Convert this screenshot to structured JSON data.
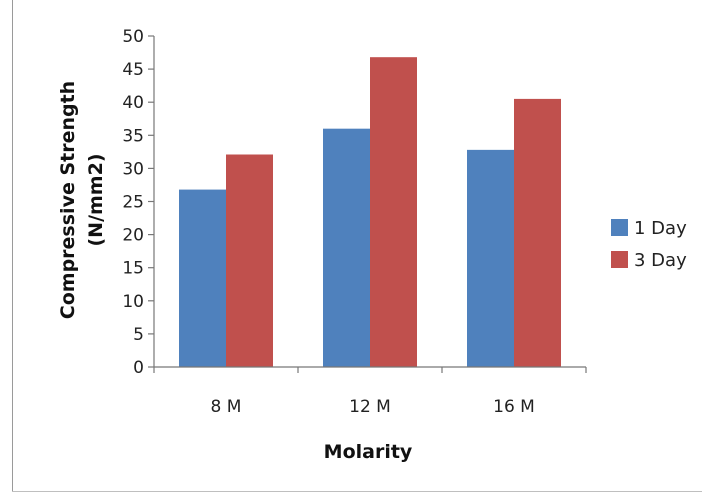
{
  "chart_data": {
    "type": "bar",
    "xlabel": "Molarity",
    "ylabel": "Compressive Strength (N/mm2)",
    "ylabel_lines": [
      "Compressive Strength",
      "(N/mm2)"
    ],
    "categories": [
      "8 M",
      "12 M",
      "16 M"
    ],
    "series": [
      {
        "name": "1 Day",
        "values": [
          26.8,
          36.0,
          32.8
        ],
        "color": "#4F81BD"
      },
      {
        "name": "3 Day",
        "values": [
          32.1,
          46.8,
          40.5
        ],
        "color": "#C0504D"
      }
    ],
    "ylim": [
      0,
      50
    ],
    "yticks": [
      0,
      5,
      10,
      15,
      20,
      25,
      30,
      35,
      40,
      45,
      50
    ],
    "grid": false,
    "legend_position": "right"
  }
}
